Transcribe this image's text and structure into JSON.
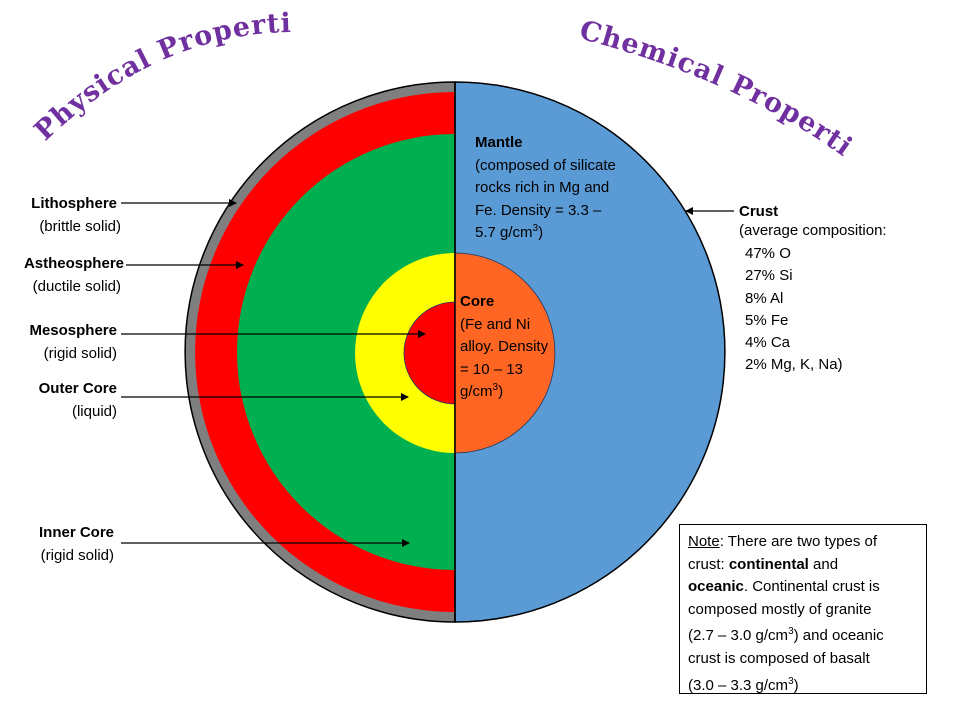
{
  "titles": {
    "physical": "Physical Properties",
    "chemical": "Chemical Properties"
  },
  "left_labels": [
    {
      "name": "Lithosphere",
      "desc": "(brittle solid)"
    },
    {
      "name": "Astheosphere",
      "desc": "(ductile solid)"
    },
    {
      "name": "Mesosphere",
      "desc": "(rigid solid)"
    },
    {
      "name": "Outer Core",
      "desc": "(liquid)"
    },
    {
      "name": "Inner Core",
      "desc": "(rigid solid)"
    }
  ],
  "mantle": {
    "title": "Mantle",
    "lines": [
      "(composed of silicate",
      "rocks rich in Mg and",
      "Fe. Density = 3.3 –",
      "5.7 g/cm",
      ")"
    ],
    "sup": "3"
  },
  "core": {
    "title": "Core",
    "lines": [
      "(Fe and Ni",
      "alloy. Density",
      "= 10 – 13",
      "g/cm",
      ")"
    ],
    "sup": "3"
  },
  "crust": {
    "title": "Crust",
    "subtitle": "(average composition:",
    "items": [
      "47% O",
      "27% Si",
      "8% Al",
      "5% Fe",
      "4% Ca",
      "2% Mg, K, Na)"
    ]
  },
  "note": {
    "label": "Note",
    "line1": ": There are two types of",
    "line2a": "crust: ",
    "line2b": "continental",
    "line2c": " and",
    "line3a": "oceanic",
    "line3b": ". Continental crust is",
    "line4": "composed mostly of granite",
    "line5a": "(2.7 – 3.0 g/cm",
    "line5b": ") and oceanic",
    "line6": "crust is composed of basalt",
    "line7a": "(3.0 – 3.3 g/cm",
    "line7b": ")",
    "sup": "3"
  },
  "colors": {
    "crust_gray": "#7F7F7F",
    "lithosphere_red": "#FF0000",
    "astheno_green": "#00B050",
    "outer_core_yellow": "#FFFF00",
    "inner_core_red": "#FF0000",
    "mantle_blue": "#5B9BD5",
    "core_orange": "#FF6624",
    "title_purple": "#7030A0"
  }
}
